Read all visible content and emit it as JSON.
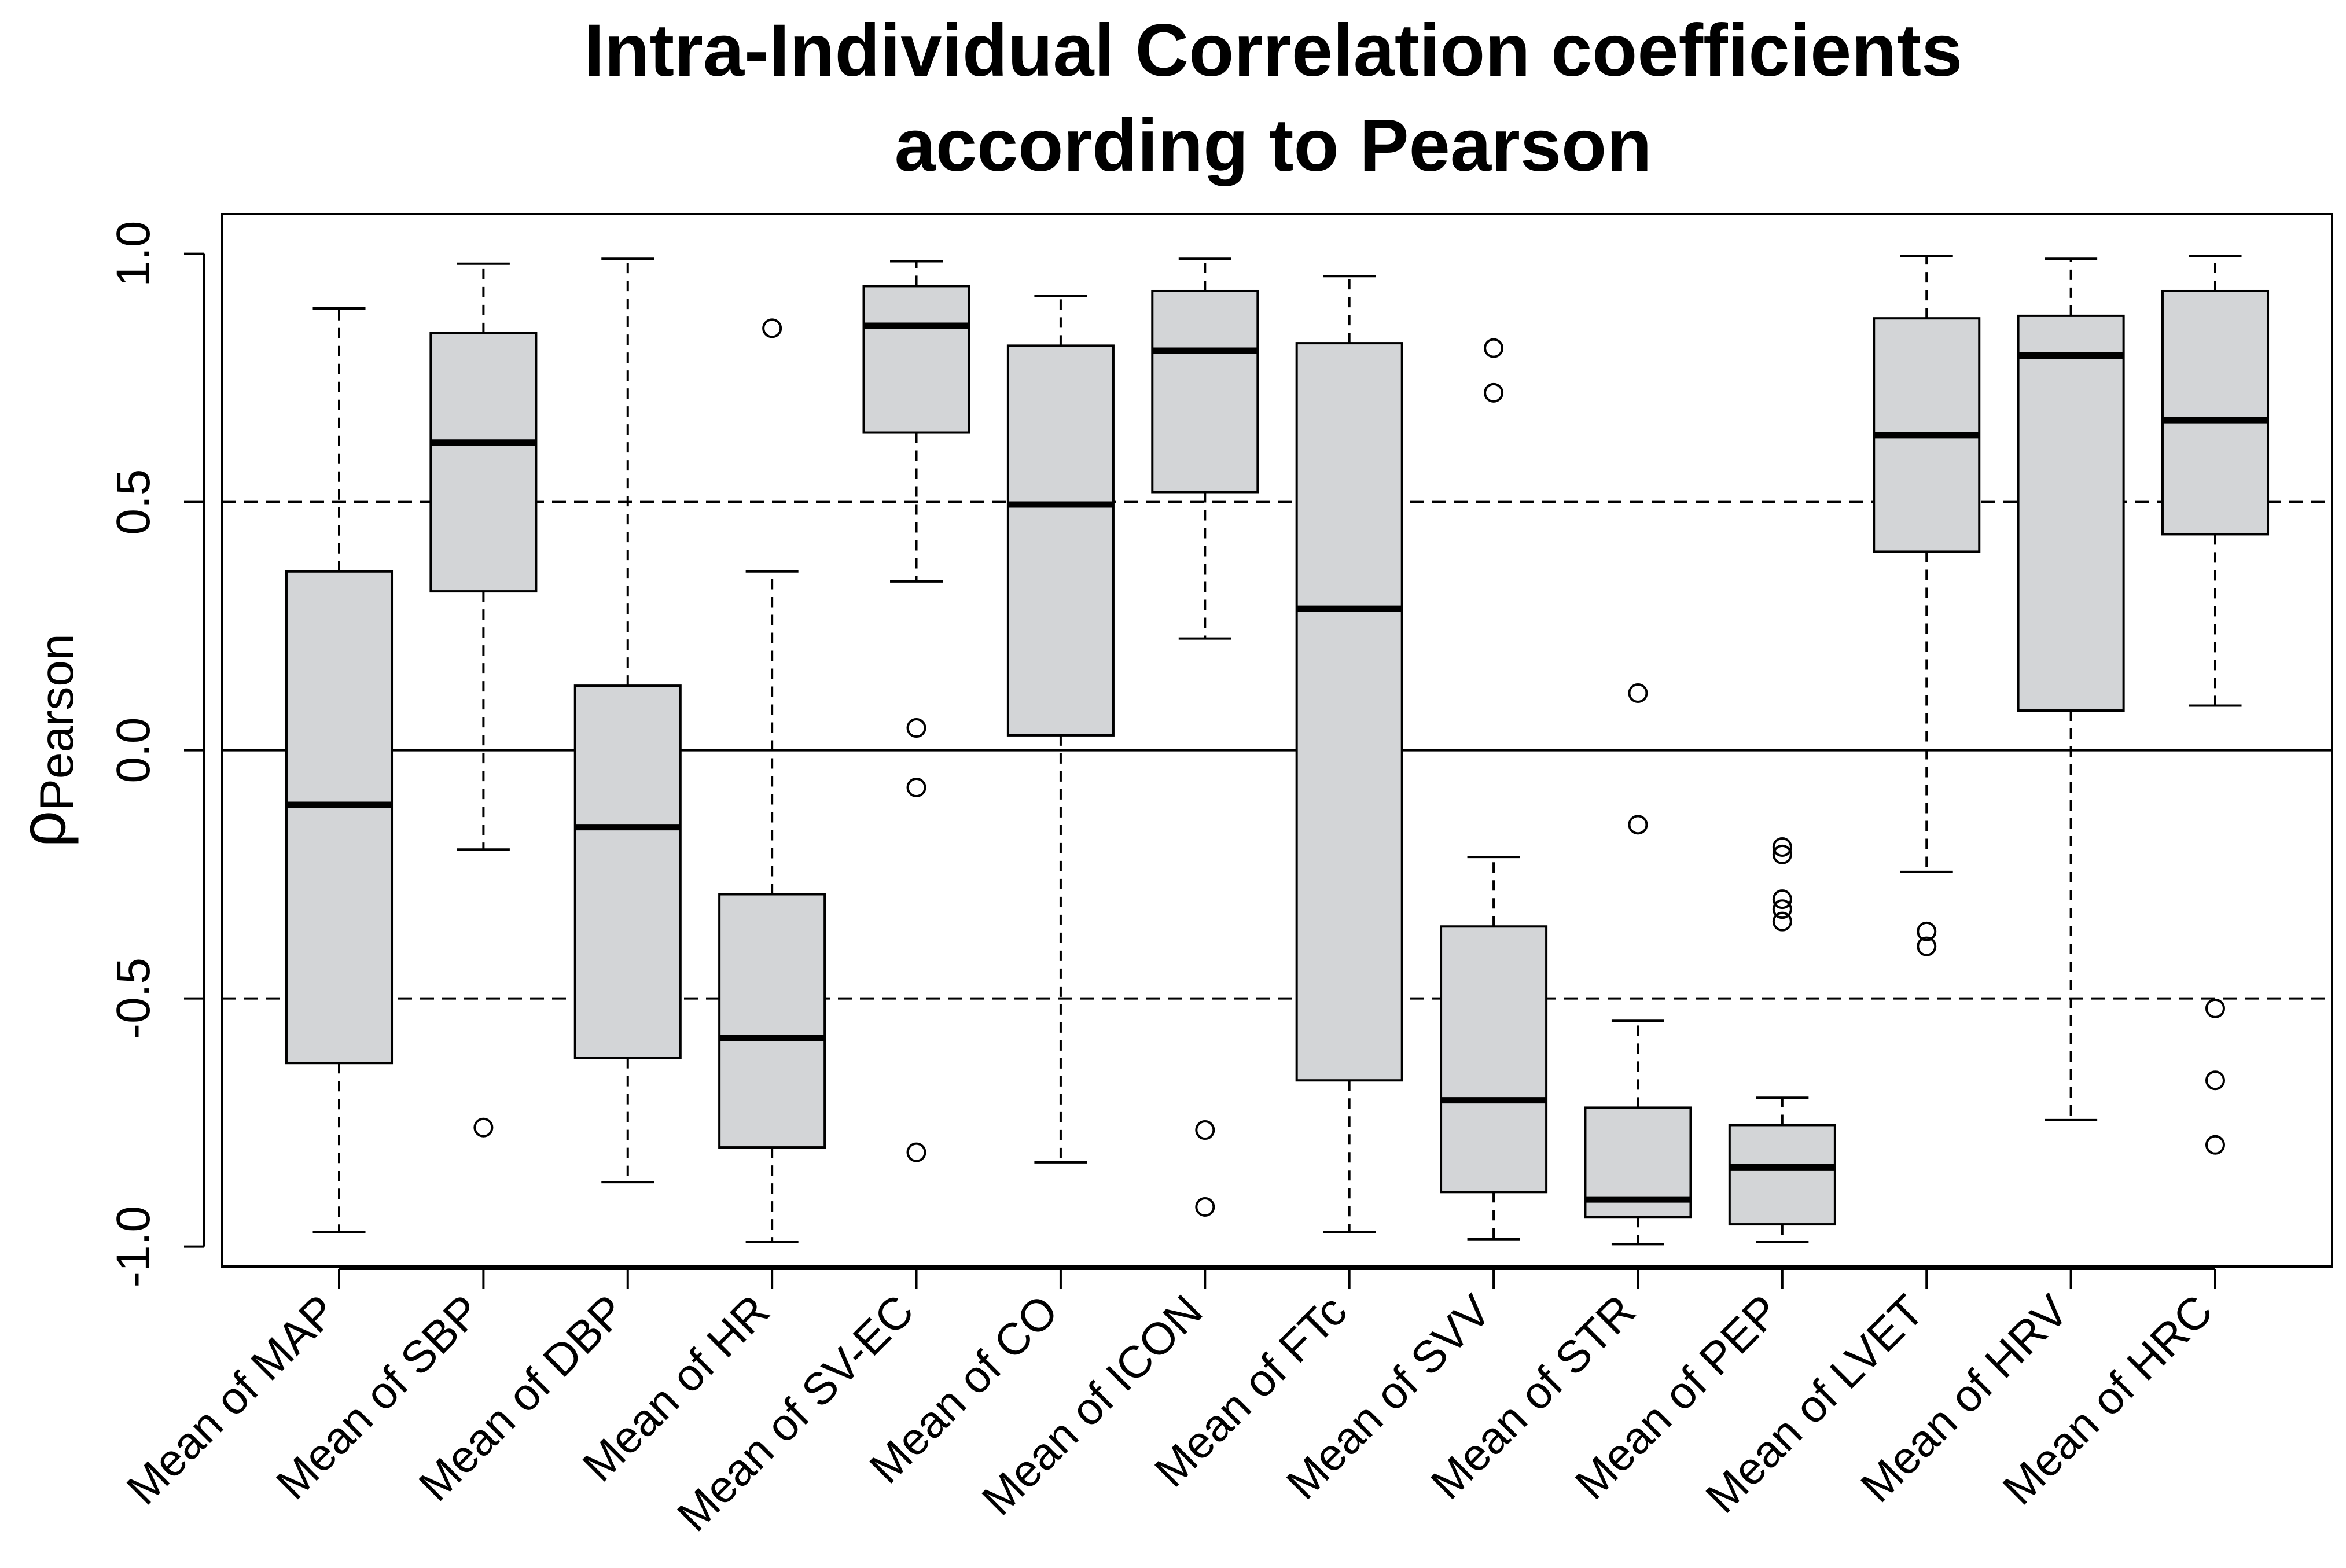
{
  "chart_data": {
    "type": "boxplot",
    "title_lines": [
      "Intra-Individual Correlation coefficients",
      "according to Pearson"
    ],
    "ylabel": {
      "symbol": "ρ",
      "subscript": "Pearson"
    },
    "xlabel": "",
    "ylim": [
      -1.04,
      1.08
    ],
    "yticks": [
      1.0,
      0.5,
      0.0,
      -0.5,
      -1.0
    ],
    "ytick_labels": [
      "1.0",
      "0.5",
      "0.0",
      "-0.5",
      "-1.0"
    ],
    "reference_lines": [
      {
        "y": 0.5,
        "style": "dashed"
      },
      {
        "y": 0.0,
        "style": "solid"
      },
      {
        "y": -0.5,
        "style": "dashed"
      }
    ],
    "fill_color": "#d3d5d7",
    "categories": [
      "Mean of MAP",
      "Mean of SBP",
      "Mean of DBP",
      "Mean of HR",
      "Mean of SV-EC",
      "Mean of CO",
      "Mean of ICON",
      "Mean of FTc",
      "Mean of SVV",
      "Mean of STR",
      "Mean of PEP",
      "Mean of LVET",
      "Mean of HRV",
      "Mean of HRC"
    ],
    "boxes": [
      {
        "whisker_low": -0.97,
        "q1": -0.63,
        "median": -0.11,
        "q3": 0.36,
        "whisker_high": 0.89,
        "outliers": []
      },
      {
        "whisker_low": -0.2,
        "q1": 0.32,
        "median": 0.62,
        "q3": 0.84,
        "whisker_high": 0.98,
        "outliers": [
          -0.76
        ]
      },
      {
        "whisker_low": -0.87,
        "q1": -0.62,
        "median": -0.155,
        "q3": 0.13,
        "whisker_high": 0.99,
        "outliers": []
      },
      {
        "whisker_low": -0.99,
        "q1": -0.8,
        "median": -0.58,
        "q3": -0.29,
        "whisker_high": 0.36,
        "outliers": [
          0.85
        ]
      },
      {
        "whisker_low": 0.34,
        "q1": 0.64,
        "median": 0.855,
        "q3": 0.935,
        "whisker_high": 0.985,
        "outliers": [
          0.045,
          -0.075,
          -0.81
        ]
      },
      {
        "whisker_low": -0.83,
        "q1": 0.03,
        "median": 0.495,
        "q3": 0.815,
        "whisker_high": 0.915,
        "outliers": []
      },
      {
        "whisker_low": 0.225,
        "q1": 0.52,
        "median": 0.805,
        "q3": 0.925,
        "whisker_high": 0.99,
        "outliers": [
          -0.765,
          -0.92
        ]
      },
      {
        "whisker_low": -0.97,
        "q1": -0.665,
        "median": 0.285,
        "q3": 0.82,
        "whisker_high": 0.955,
        "outliers": []
      },
      {
        "whisker_low": -0.985,
        "q1": -0.89,
        "median": -0.705,
        "q3": -0.355,
        "whisker_high": -0.215,
        "outliers": [
          0.81,
          0.72
        ]
      },
      {
        "whisker_low": -0.995,
        "q1": -0.94,
        "median": -0.905,
        "q3": -0.72,
        "whisker_high": -0.545,
        "outliers": [
          0.115,
          -0.15
        ]
      },
      {
        "whisker_low": -0.99,
        "q1": -0.955,
        "median": -0.84,
        "q3": -0.755,
        "whisker_high": -0.7,
        "outliers": [
          -0.195,
          -0.21,
          -0.3,
          -0.32,
          -0.345
        ]
      },
      {
        "whisker_low": -0.245,
        "q1": 0.4,
        "median": 0.635,
        "q3": 0.87,
        "whisker_high": 0.995,
        "outliers": [
          -0.365,
          -0.395
        ]
      },
      {
        "whisker_low": -0.745,
        "q1": 0.08,
        "median": 0.795,
        "q3": 0.875,
        "whisker_high": 0.99,
        "outliers": []
      },
      {
        "whisker_low": 0.09,
        "q1": 0.435,
        "median": 0.665,
        "q3": 0.925,
        "whisker_high": 0.995,
        "outliers": [
          -0.52,
          -0.665,
          -0.795
        ]
      }
    ]
  }
}
